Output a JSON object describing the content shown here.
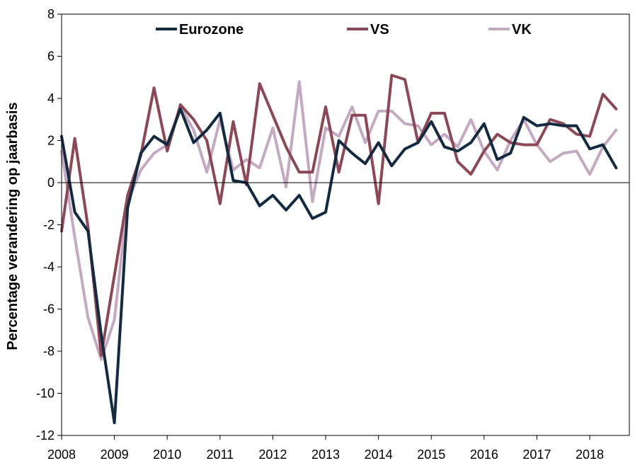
{
  "chart_data": {
    "type": "line",
    "title": "",
    "xlabel": "",
    "ylabel": "Percentage verandering op jaarbasis",
    "ylim": [
      -12,
      8
    ],
    "yticks": [
      -12,
      -10,
      -8,
      -6,
      -4,
      -2,
      0,
      2,
      4,
      6,
      8
    ],
    "xlim": [
      2008.0,
      2018.75
    ],
    "xticks": [
      "2008",
      "2009",
      "2010",
      "2011",
      "2012",
      "2013",
      "2014",
      "2015",
      "2016",
      "2017",
      "2018"
    ],
    "grid": false,
    "legend_position": "top",
    "x": [
      2008.0,
      2008.25,
      2008.5,
      2008.75,
      2009.0,
      2009.25,
      2009.5,
      2009.75,
      2010.0,
      2010.25,
      2010.5,
      2010.75,
      2011.0,
      2011.25,
      2011.5,
      2011.75,
      2012.0,
      2012.25,
      2012.5,
      2012.75,
      2013.0,
      2013.25,
      2013.5,
      2013.75,
      2014.0,
      2014.25,
      2014.5,
      2014.75,
      2015.0,
      2015.25,
      2015.5,
      2015.75,
      2016.0,
      2016.25,
      2016.5,
      2016.75,
      2017.0,
      2017.25,
      2017.5,
      2017.75,
      2018.0,
      2018.25,
      2018.5
    ],
    "series": [
      {
        "name": "Eurozone",
        "color": "#142a40",
        "values": [
          2.2,
          -1.4,
          -2.3,
          -7.2,
          -11.4,
          -1.2,
          1.4,
          2.2,
          1.8,
          3.5,
          1.9,
          2.5,
          3.3,
          0.1,
          0.0,
          -1.1,
          -0.6,
          -1.3,
          -0.6,
          -1.7,
          -1.4,
          2.0,
          1.4,
          0.9,
          1.9,
          0.8,
          1.6,
          1.9,
          2.9,
          1.7,
          1.5,
          1.9,
          2.8,
          1.1,
          1.4,
          3.1,
          2.7,
          2.8,
          2.7,
          2.7,
          1.6,
          1.8,
          0.7
        ]
      },
      {
        "name": "VS",
        "color": "#8b4856",
        "values": [
          -2.3,
          2.1,
          -2.1,
          -8.2,
          -4.4,
          -0.6,
          1.3,
          4.5,
          1.5,
          3.7,
          3.0,
          2.0,
          -1.0,
          2.9,
          -0.1,
          4.7,
          3.2,
          1.7,
          0.5,
          0.5,
          3.6,
          0.5,
          3.2,
          3.2,
          -1.0,
          5.1,
          4.9,
          1.9,
          3.3,
          3.3,
          1.0,
          0.4,
          1.5,
          2.3,
          1.9,
          1.8,
          1.8,
          3.0,
          2.8,
          2.3,
          2.2,
          4.2,
          3.5
        ]
      },
      {
        "name": "VK",
        "color": "#c4a9c2",
        "values": [
          1.5,
          -2.6,
          -6.4,
          -8.4,
          -6.5,
          -0.9,
          0.6,
          1.4,
          1.8,
          3.6,
          2.5,
          0.5,
          3.0,
          0.6,
          1.1,
          0.7,
          2.6,
          -0.2,
          4.8,
          -0.9,
          2.6,
          2.2,
          3.6,
          1.9,
          3.4,
          3.4,
          2.8,
          2.7,
          1.8,
          2.3,
          1.7,
          3.0,
          1.5,
          0.6,
          2.0,
          3.0,
          1.8,
          1.0,
          1.4,
          1.5,
          0.4,
          1.7,
          2.5
        ]
      }
    ]
  }
}
